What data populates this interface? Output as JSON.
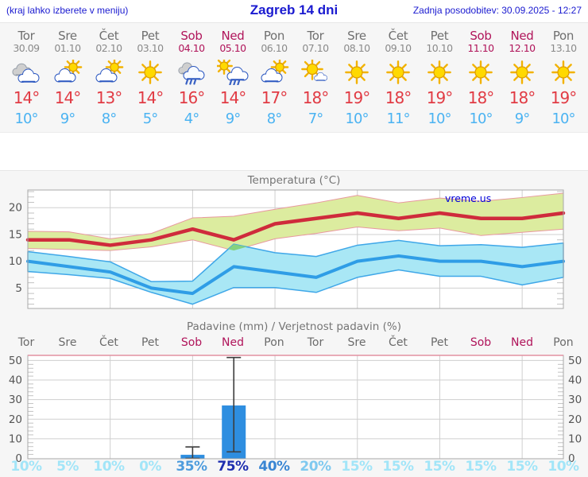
{
  "header": {
    "note": "(kraj lahko izberete v meniju)",
    "title": "Zagreb 14 dni",
    "updated": "Zadnja posodobitev: 30.09.2025 - 12:27"
  },
  "colors": {
    "weekday": "#6f6f6f",
    "weekend": "#b0145a",
    "tmax_text": "#e13b44",
    "tmin_text": "#4bb3f2",
    "header_blue": "#1a1ad0",
    "panel_bg": "#f6f6f6"
  },
  "days": [
    {
      "name": "Tor",
      "date": "30.09",
      "weekend": false,
      "icon": "cloudy",
      "tmax": "14°",
      "tmin": "10°",
      "prob": "10%",
      "prob_color": "#a2e5f8"
    },
    {
      "name": "Sre",
      "date": "01.10",
      "weekend": false,
      "icon": "partly-sunny",
      "tmax": "14°",
      "tmin": "9°",
      "prob": "5%",
      "prob_color": "#a2e5f8"
    },
    {
      "name": "Čet",
      "date": "02.10",
      "weekend": false,
      "icon": "partly-sunny",
      "tmax": "13°",
      "tmin": "8°",
      "prob": "10%",
      "prob_color": "#a2e5f8"
    },
    {
      "name": "Pet",
      "date": "03.10",
      "weekend": false,
      "icon": "sunny",
      "tmax": "14°",
      "tmin": "5°",
      "prob": "0%",
      "prob_color": "#a2e5f8"
    },
    {
      "name": "Sob",
      "date": "04.10",
      "weekend": true,
      "icon": "rain",
      "tmax": "16°",
      "tmin": "4°",
      "prob": "35%",
      "prob_color": "#4e9cdd"
    },
    {
      "name": "Ned",
      "date": "05.10",
      "weekend": true,
      "icon": "sun-rain",
      "tmax": "14°",
      "tmin": "9°",
      "prob": "75%",
      "prob_color": "#1f2fb0"
    },
    {
      "name": "Pon",
      "date": "06.10",
      "weekend": false,
      "icon": "partly-sunny",
      "tmax": "17°",
      "tmin": "8°",
      "prob": "40%",
      "prob_color": "#3a86d3"
    },
    {
      "name": "Tor",
      "date": "07.10",
      "weekend": false,
      "icon": "mostly-sunny",
      "tmax": "18°",
      "tmin": "7°",
      "prob": "20%",
      "prob_color": "#7fc9ef"
    },
    {
      "name": "Sre",
      "date": "08.10",
      "weekend": false,
      "icon": "sunny",
      "tmax": "19°",
      "tmin": "10°",
      "prob": "15%",
      "prob_color": "#a2e5f8"
    },
    {
      "name": "Čet",
      "date": "09.10",
      "weekend": false,
      "icon": "sunny",
      "tmax": "18°",
      "tmin": "11°",
      "prob": "15%",
      "prob_color": "#a2e5f8"
    },
    {
      "name": "Pet",
      "date": "10.10",
      "weekend": false,
      "icon": "sunny",
      "tmax": "19°",
      "tmin": "10°",
      "prob": "15%",
      "prob_color": "#a2e5f8"
    },
    {
      "name": "Sob",
      "date": "11.10",
      "weekend": true,
      "icon": "sunny",
      "tmax": "18°",
      "tmin": "10°",
      "prob": "15%",
      "prob_color": "#a2e5f8"
    },
    {
      "name": "Ned",
      "date": "12.10",
      "weekend": true,
      "icon": "sunny",
      "tmax": "18°",
      "tmin": "9°",
      "prob": "15%",
      "prob_color": "#a2e5f8"
    },
    {
      "name": "Pon",
      "date": "13.10",
      "weekend": false,
      "icon": "sunny",
      "tmax": "19°",
      "tmin": "10°",
      "prob": "10%",
      "prob_color": "#a2e5f8"
    }
  ],
  "chart_data": [
    {
      "type": "line",
      "title": "Temperatura (°C)",
      "watermark": "vreme.us",
      "x_days": [
        1,
        2,
        3,
        4,
        5,
        6,
        7,
        8,
        9,
        10,
        11,
        12,
        13,
        14
      ],
      "yticks": [
        5,
        10,
        15,
        20
      ],
      "ylim": [
        1.2,
        23.3
      ],
      "gridline_days": [
        3,
        5,
        7,
        9,
        11,
        13
      ],
      "grid_color": "#cfcfcf",
      "series": [
        {
          "name": "max temperatura",
          "color": "#cf2b3c",
          "width": 4.5,
          "values": [
            14,
            14,
            13,
            14,
            16,
            14,
            17,
            18,
            19,
            18,
            19,
            18,
            18,
            19
          ]
        },
        {
          "name": "min temperatura",
          "color": "#2f9de6",
          "width": 4,
          "values": [
            10,
            9,
            8,
            5,
            4,
            9,
            8,
            7,
            10,
            11,
            10,
            10,
            9,
            10
          ]
        }
      ],
      "bands": [
        {
          "name": "max razpon",
          "color": "#dcec9f",
          "edge": "#e8989f",
          "edge_width": 1,
          "upper": [
            15.6,
            15.5,
            14.2,
            15.2,
            18.1,
            18.4,
            19.7,
            20.9,
            22.3,
            20.9,
            21.8,
            21.2,
            21.9,
            22.7
          ],
          "lower": [
            12.4,
            12.2,
            12.0,
            12.7,
            14.0,
            12.0,
            14.2,
            15.2,
            16.4,
            15.7,
            16.2,
            14.8,
            15.4,
            16.0
          ]
        },
        {
          "name": "min razpon",
          "color": "#a9e7f5",
          "edge": "#3fa7e8",
          "edge_width": 1.5,
          "upper": [
            11.8,
            10.9,
            9.9,
            6.2,
            6.3,
            13.2,
            11.6,
            10.9,
            13.0,
            13.9,
            12.9,
            13.1,
            12.6,
            13.4
          ],
          "lower": [
            8.1,
            7.5,
            6.8,
            4.2,
            2.0,
            5.1,
            5.1,
            4.2,
            7.0,
            8.4,
            7.2,
            7.2,
            5.6,
            7.0
          ]
        }
      ],
      "overlap": {
        "color": "#85d27f",
        "points": [
          [
            5.865,
            12.27
          ],
          [
            6,
            13.2
          ],
          [
            6.316,
            12.69
          ],
          [
            6,
            12.0
          ]
        ]
      }
    },
    {
      "type": "bar",
      "title": "Padavine (mm) / Verjetnost padavin (%)",
      "categories": [
        "Tor",
        "Sre",
        "Čet",
        "Pet",
        "Sob",
        "Ned",
        "Pon",
        "Tor",
        "Sre",
        "Čet",
        "Pet",
        "Sob",
        "Ned",
        "Pon"
      ],
      "weekend": [
        false,
        false,
        false,
        false,
        true,
        true,
        false,
        false,
        false,
        false,
        false,
        true,
        true,
        false
      ],
      "values": [
        0,
        0,
        0,
        0,
        1.8,
        27,
        0,
        0,
        0,
        0,
        0,
        0,
        0,
        0
      ],
      "whisker_low": [
        null,
        null,
        null,
        null,
        0,
        3.3,
        null,
        null,
        null,
        null,
        null,
        null,
        null,
        null
      ],
      "whisker_high": [
        null,
        null,
        null,
        null,
        5.8,
        51.5,
        null,
        null,
        null,
        null,
        null,
        null,
        null,
        null
      ],
      "yticks": [
        0,
        10,
        20,
        30,
        40,
        50
      ],
      "ylim": [
        0,
        52.6
      ],
      "gridline_days": [
        3,
        5,
        7,
        9,
        11,
        13
      ],
      "bar_color": "#2e8ee0",
      "whisker_color": "#3c3c3c",
      "top_border_color": "#e291a1",
      "probabilities": [
        "10%",
        "5%",
        "10%",
        "0%",
        "35%",
        "75%",
        "40%",
        "20%",
        "15%",
        "15%",
        "15%",
        "15%",
        "15%",
        "10%"
      ]
    }
  ]
}
